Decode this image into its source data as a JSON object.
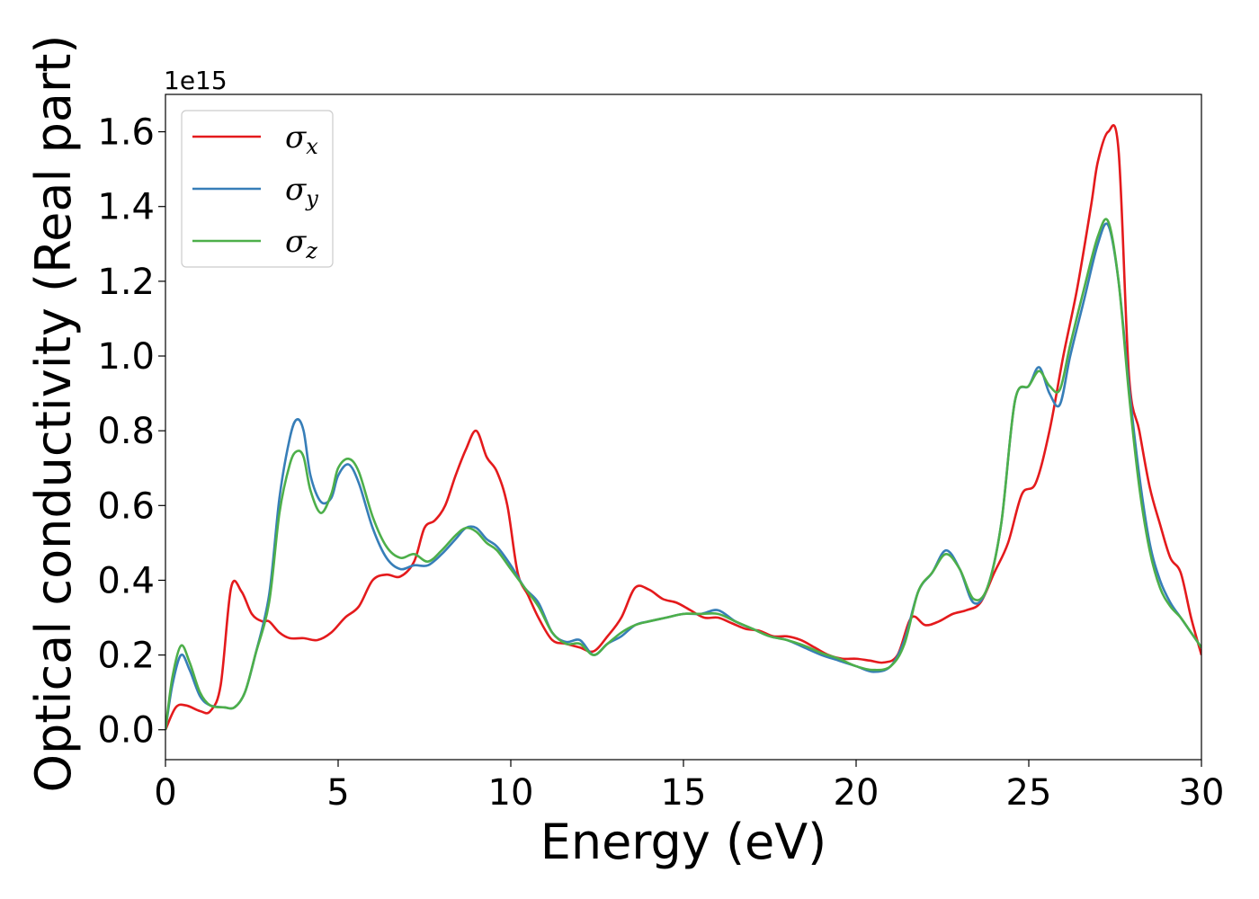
{
  "chart_data": {
    "type": "line",
    "title": "",
    "xlabel": "Energy (eV)",
    "ylabel": "Optical conductivity (Real part)",
    "y_offset_label": "1e15",
    "xlim": [
      0,
      30
    ],
    "ylim": [
      -0.08,
      1.7
    ],
    "x_ticks": [
      0,
      5,
      10,
      15,
      20,
      25,
      30
    ],
    "x_tick_labels": [
      "0",
      "5",
      "10",
      "15",
      "20",
      "25",
      "30"
    ],
    "y_ticks": [
      0.0,
      0.2,
      0.4,
      0.6,
      0.8,
      1.0,
      1.2,
      1.4,
      1.6
    ],
    "y_tick_labels": [
      "0.0",
      "0.2",
      "0.4",
      "0.6",
      "0.8",
      "1.0",
      "1.2",
      "1.4",
      "1.6"
    ],
    "grid": false,
    "legend_position": "top-left",
    "series": [
      {
        "name": "σ",
        "subscript": "x",
        "color": "#e41a1c",
        "x": [
          0,
          0.3,
          0.6,
          1.0,
          1.3,
          1.6,
          1.9,
          2.2,
          2.5,
          2.8,
          3.0,
          3.3,
          3.6,
          4.0,
          4.4,
          4.8,
          5.2,
          5.6,
          6.0,
          6.4,
          6.8,
          7.2,
          7.5,
          7.8,
          8.1,
          8.4,
          8.7,
          9.0,
          9.3,
          9.6,
          9.9,
          10.2,
          10.5,
          10.8,
          11.2,
          11.6,
          12.0,
          12.4,
          12.8,
          13.2,
          13.6,
          14.0,
          14.4,
          14.8,
          15.2,
          15.6,
          16.0,
          16.4,
          16.8,
          17.2,
          17.6,
          18.0,
          18.4,
          18.8,
          19.2,
          19.6,
          20.0,
          20.4,
          20.8,
          21.2,
          21.6,
          22.0,
          22.4,
          22.8,
          23.2,
          23.6,
          24.0,
          24.4,
          24.8,
          25.2,
          25.6,
          26.0,
          26.4,
          26.8,
          27.0,
          27.3,
          27.6,
          27.9,
          28.2,
          28.5,
          28.8,
          29.1,
          29.4,
          29.7,
          30.0
        ],
        "y": [
          0.0,
          0.06,
          0.065,
          0.05,
          0.05,
          0.12,
          0.38,
          0.37,
          0.31,
          0.29,
          0.29,
          0.26,
          0.245,
          0.245,
          0.24,
          0.26,
          0.3,
          0.33,
          0.4,
          0.415,
          0.41,
          0.45,
          0.54,
          0.56,
          0.6,
          0.68,
          0.75,
          0.8,
          0.73,
          0.69,
          0.6,
          0.42,
          0.36,
          0.3,
          0.24,
          0.23,
          0.22,
          0.21,
          0.25,
          0.3,
          0.38,
          0.375,
          0.35,
          0.34,
          0.32,
          0.3,
          0.3,
          0.285,
          0.27,
          0.265,
          0.25,
          0.25,
          0.24,
          0.22,
          0.2,
          0.19,
          0.19,
          0.185,
          0.18,
          0.2,
          0.3,
          0.28,
          0.29,
          0.31,
          0.32,
          0.34,
          0.42,
          0.5,
          0.63,
          0.66,
          0.8,
          1.0,
          1.18,
          1.4,
          1.52,
          1.6,
          1.55,
          0.95,
          0.8,
          0.65,
          0.55,
          0.46,
          0.42,
          0.3,
          0.2
        ]
      },
      {
        "name": "σ",
        "subscript": "y",
        "color": "#377eb8",
        "x": [
          0,
          0.2,
          0.45,
          0.7,
          1.0,
          1.3,
          1.7,
          2.0,
          2.3,
          2.6,
          3.0,
          3.3,
          3.6,
          3.8,
          4.0,
          4.2,
          4.5,
          4.8,
          5.0,
          5.3,
          5.6,
          6.0,
          6.4,
          6.8,
          7.2,
          7.6,
          8.0,
          8.4,
          8.7,
          9.0,
          9.3,
          9.6,
          10.0,
          10.4,
          10.8,
          11.2,
          11.6,
          12.0,
          12.4,
          12.8,
          13.2,
          13.6,
          14.0,
          14.5,
          15.0,
          15.5,
          16.0,
          16.5,
          17.0,
          17.5,
          18.0,
          18.5,
          19.0,
          19.5,
          20.0,
          20.5,
          21.0,
          21.4,
          21.8,
          22.2,
          22.6,
          23.0,
          23.4,
          23.8,
          24.2,
          24.6,
          25.0,
          25.3,
          25.6,
          25.9,
          26.2,
          26.6,
          27.0,
          27.3,
          27.6,
          27.9,
          28.2,
          28.5,
          28.8,
          29.1,
          29.4,
          29.7,
          30.0
        ],
        "y": [
          0.0,
          0.12,
          0.2,
          0.16,
          0.09,
          0.065,
          0.06,
          0.06,
          0.1,
          0.2,
          0.36,
          0.62,
          0.78,
          0.83,
          0.8,
          0.68,
          0.61,
          0.62,
          0.68,
          0.71,
          0.66,
          0.54,
          0.46,
          0.43,
          0.44,
          0.44,
          0.47,
          0.51,
          0.54,
          0.54,
          0.51,
          0.49,
          0.44,
          0.38,
          0.34,
          0.26,
          0.235,
          0.24,
          0.2,
          0.23,
          0.25,
          0.28,
          0.29,
          0.3,
          0.31,
          0.31,
          0.32,
          0.29,
          0.27,
          0.25,
          0.24,
          0.22,
          0.2,
          0.185,
          0.17,
          0.155,
          0.17,
          0.24,
          0.37,
          0.42,
          0.48,
          0.43,
          0.34,
          0.38,
          0.55,
          0.88,
          0.92,
          0.97,
          0.9,
          0.87,
          1.0,
          1.15,
          1.3,
          1.35,
          1.2,
          0.92,
          0.68,
          0.5,
          0.4,
          0.34,
          0.3,
          0.26,
          0.22
        ]
      },
      {
        "name": "σ",
        "subscript": "z",
        "color": "#4daf4a",
        "x": [
          0,
          0.2,
          0.45,
          0.7,
          1.0,
          1.3,
          1.7,
          2.0,
          2.3,
          2.6,
          3.0,
          3.3,
          3.6,
          3.8,
          4.0,
          4.2,
          4.5,
          4.8,
          5.0,
          5.3,
          5.6,
          6.0,
          6.4,
          6.8,
          7.2,
          7.6,
          8.0,
          8.4,
          8.7,
          9.0,
          9.3,
          9.6,
          10.0,
          10.4,
          10.8,
          11.2,
          11.6,
          12.0,
          12.4,
          12.8,
          13.2,
          13.6,
          14.0,
          14.5,
          15.0,
          15.5,
          16.0,
          16.5,
          17.0,
          17.5,
          18.0,
          18.5,
          19.0,
          19.5,
          20.0,
          20.5,
          21.0,
          21.4,
          21.8,
          22.2,
          22.6,
          23.0,
          23.4,
          23.8,
          24.2,
          24.6,
          25.0,
          25.3,
          25.6,
          25.9,
          26.2,
          26.6,
          27.0,
          27.3,
          27.6,
          27.9,
          28.2,
          28.5,
          28.8,
          29.1,
          29.4,
          29.7,
          30.0
        ],
        "y": [
          0.0,
          0.14,
          0.225,
          0.18,
          0.1,
          0.065,
          0.06,
          0.06,
          0.1,
          0.2,
          0.34,
          0.58,
          0.71,
          0.745,
          0.73,
          0.64,
          0.58,
          0.63,
          0.7,
          0.725,
          0.69,
          0.57,
          0.49,
          0.46,
          0.47,
          0.45,
          0.48,
          0.52,
          0.54,
          0.53,
          0.5,
          0.48,
          0.43,
          0.38,
          0.33,
          0.26,
          0.23,
          0.23,
          0.2,
          0.23,
          0.26,
          0.28,
          0.29,
          0.3,
          0.31,
          0.31,
          0.31,
          0.29,
          0.27,
          0.25,
          0.24,
          0.225,
          0.205,
          0.19,
          0.17,
          0.16,
          0.17,
          0.23,
          0.37,
          0.42,
          0.47,
          0.43,
          0.35,
          0.38,
          0.55,
          0.88,
          0.92,
          0.96,
          0.92,
          0.91,
          1.03,
          1.18,
          1.32,
          1.36,
          1.2,
          0.9,
          0.65,
          0.48,
          0.38,
          0.33,
          0.3,
          0.26,
          0.22
        ]
      }
    ]
  }
}
